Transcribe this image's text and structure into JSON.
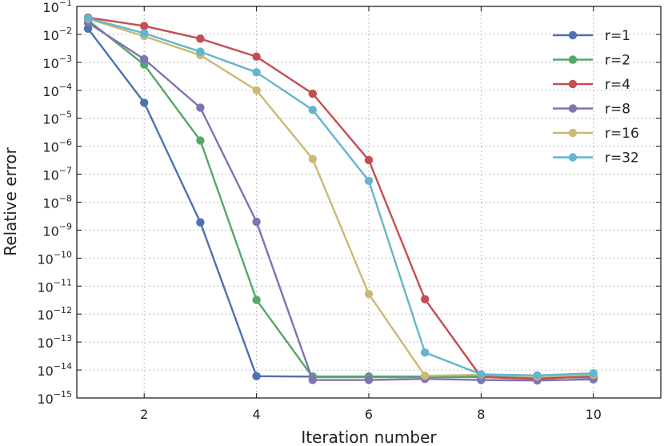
{
  "chart_data": {
    "type": "line",
    "title": "",
    "xlabel": "Iteration number",
    "ylabel": "Relative error",
    "xlim": [
      0.8,
      11.2
    ],
    "ylim_exp": [
      -15,
      -1
    ],
    "yscale": "log",
    "grid": true,
    "legend_position": "top-right",
    "x_ticks": [
      2,
      4,
      6,
      8,
      10
    ],
    "y_tick_exponents": [
      -15,
      -14,
      -13,
      -12,
      -11,
      -10,
      -9,
      -8,
      -7,
      -6,
      -5,
      -4,
      -3,
      -2,
      -1
    ],
    "x": [
      1,
      2,
      3,
      4,
      5,
      6,
      7,
      8,
      9,
      10
    ],
    "series": [
      {
        "name": "r=1",
        "color": "#4c72b0",
        "values": [
          0.016,
          3.6e-05,
          1.9e-09,
          6e-15,
          5.8e-15,
          5.8e-15,
          5.8e-15,
          6e-15,
          5.4e-15,
          5.4e-15
        ]
      },
      {
        "name": "r=2",
        "color": "#55a868",
        "values": [
          0.032,
          0.00083,
          1.6e-06,
          3.2e-12,
          5.6e-15,
          5.6e-15,
          5.6e-15,
          5.6e-15,
          5.2e-15,
          5.8e-15
        ]
      },
      {
        "name": "r=4",
        "color": "#c44e52",
        "values": [
          0.04,
          0.02,
          0.007,
          0.0016,
          7.6e-05,
          3.2e-07,
          3.4e-12,
          5.6e-15,
          4.8e-15,
          6e-15
        ]
      },
      {
        "name": "r=8",
        "color": "#8172b2",
        "values": [
          0.026,
          0.0013,
          2.4e-05,
          2e-09,
          4.4e-15,
          4.4e-15,
          4.8e-15,
          4.4e-15,
          4.2e-15,
          4.6e-15
        ]
      },
      {
        "name": "r=16",
        "color": "#ccb974",
        "values": [
          0.036,
          0.0086,
          0.0018,
          0.0001,
          3.5e-07,
          5.2e-12,
          6.2e-15,
          6.8e-15,
          5.8e-15,
          6.8e-15
        ]
      },
      {
        "name": "r=32",
        "color": "#64b5cd",
        "values": [
          0.038,
          0.011,
          0.0024,
          0.00044,
          2e-05,
          5.8e-08,
          4.2e-14,
          7e-15,
          6.4e-15,
          7.6e-15
        ]
      }
    ]
  }
}
